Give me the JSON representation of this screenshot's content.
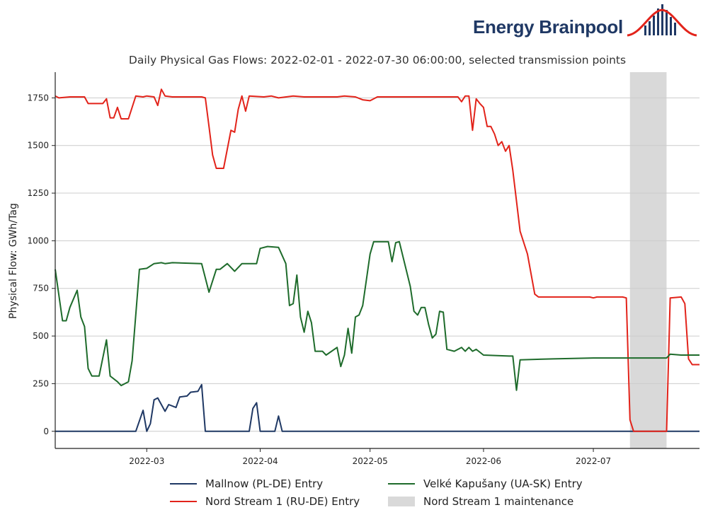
{
  "brand": {
    "name": "Energy Brainpool",
    "logo_icon": "bell-curve-bars-icon",
    "color": "#1f3864",
    "accent": "#e2231a"
  },
  "chart_data": {
    "type": "line",
    "title": "Daily Physical Gas Flows: 2022-02-01 - 2022-07-30 06:00:00, selected transmission points",
    "xlabel": "",
    "ylabel": "Physical Flow: GWh/Tag",
    "xlim": [
      "2022-02-04",
      "2022-07-30"
    ],
    "ylim": [
      -90,
      1885
    ],
    "yticks": [
      0,
      250,
      500,
      750,
      1000,
      1250,
      1500,
      1750
    ],
    "xticks": [
      "2022-03",
      "2022-04",
      "2022-05",
      "2022-06",
      "2022-07"
    ],
    "xtick_dates": [
      "2022-03-01",
      "2022-04-01",
      "2022-05-01",
      "2022-06-01",
      "2022-07-01"
    ],
    "grid": "horizontal",
    "legend_position": "bottom",
    "shaded_regions": [
      {
        "name": "Nord Stream 1 maintenance",
        "start": "2022-07-11",
        "end": "2022-07-21",
        "color": "#d9d9d9"
      }
    ],
    "series": [
      {
        "name": "Mallnow (PL-DE) Entry",
        "color": "#1f3864",
        "points": [
          [
            "2022-02-04",
            0
          ],
          [
            "2022-02-26",
            0
          ],
          [
            "2022-02-28",
            110
          ],
          [
            "2022-03-01",
            0
          ],
          [
            "2022-03-02",
            40
          ],
          [
            "2022-03-03",
            165
          ],
          [
            "2022-03-04",
            175
          ],
          [
            "2022-03-06",
            105
          ],
          [
            "2022-03-07",
            140
          ],
          [
            "2022-03-09",
            125
          ],
          [
            "2022-03-10",
            180
          ],
          [
            "2022-03-12",
            185
          ],
          [
            "2022-03-13",
            205
          ],
          [
            "2022-03-15",
            210
          ],
          [
            "2022-03-16",
            245
          ],
          [
            "2022-03-17",
            0
          ],
          [
            "2022-03-29",
            0
          ],
          [
            "2022-03-30",
            120
          ],
          [
            "2022-03-31",
            150
          ],
          [
            "2022-04-01",
            0
          ],
          [
            "2022-04-05",
            0
          ],
          [
            "2022-04-06",
            80
          ],
          [
            "2022-04-07",
            0
          ],
          [
            "2022-07-30",
            0
          ]
        ]
      },
      {
        "name": "Nord Stream 1 (RU-DE) Entry",
        "color": "#e2231a",
        "points": [
          [
            "2022-02-04",
            1760
          ],
          [
            "2022-02-05",
            1750
          ],
          [
            "2022-02-08",
            1755
          ],
          [
            "2022-02-12",
            1755
          ],
          [
            "2022-02-13",
            1720
          ],
          [
            "2022-02-17",
            1720
          ],
          [
            "2022-02-18",
            1745
          ],
          [
            "2022-02-19",
            1645
          ],
          [
            "2022-02-20",
            1645
          ],
          [
            "2022-02-21",
            1700
          ],
          [
            "2022-02-22",
            1640
          ],
          [
            "2022-02-24",
            1640
          ],
          [
            "2022-02-26",
            1760
          ],
          [
            "2022-02-28",
            1755
          ],
          [
            "2022-03-01",
            1760
          ],
          [
            "2022-03-03",
            1755
          ],
          [
            "2022-03-04",
            1710
          ],
          [
            "2022-03-05",
            1795
          ],
          [
            "2022-03-06",
            1760
          ],
          [
            "2022-03-08",
            1755
          ],
          [
            "2022-03-16",
            1755
          ],
          [
            "2022-03-17",
            1750
          ],
          [
            "2022-03-18",
            1600
          ],
          [
            "2022-03-19",
            1450
          ],
          [
            "2022-03-20",
            1380
          ],
          [
            "2022-03-22",
            1380
          ],
          [
            "2022-03-24",
            1580
          ],
          [
            "2022-03-25",
            1570
          ],
          [
            "2022-03-26",
            1690
          ],
          [
            "2022-03-27",
            1760
          ],
          [
            "2022-03-28",
            1680
          ],
          [
            "2022-03-29",
            1760
          ],
          [
            "2022-04-02",
            1755
          ],
          [
            "2022-04-04",
            1760
          ],
          [
            "2022-04-06",
            1750
          ],
          [
            "2022-04-10",
            1760
          ],
          [
            "2022-04-13",
            1755
          ],
          [
            "2022-04-22",
            1755
          ],
          [
            "2022-04-24",
            1760
          ],
          [
            "2022-04-27",
            1755
          ],
          [
            "2022-04-29",
            1740
          ],
          [
            "2022-05-01",
            1735
          ],
          [
            "2022-05-03",
            1755
          ],
          [
            "2022-05-10",
            1755
          ],
          [
            "2022-05-20",
            1755
          ],
          [
            "2022-05-25",
            1755
          ],
          [
            "2022-05-26",
            1730
          ],
          [
            "2022-05-27",
            1760
          ],
          [
            "2022-05-28",
            1760
          ],
          [
            "2022-05-29",
            1580
          ],
          [
            "2022-05-30",
            1745
          ],
          [
            "2022-05-31",
            1720
          ],
          [
            "2022-06-01",
            1700
          ],
          [
            "2022-06-02",
            1600
          ],
          [
            "2022-06-03",
            1600
          ],
          [
            "2022-06-04",
            1560
          ],
          [
            "2022-06-05",
            1500
          ],
          [
            "2022-06-06",
            1520
          ],
          [
            "2022-06-07",
            1470
          ],
          [
            "2022-06-08",
            1500
          ],
          [
            "2022-06-09",
            1370
          ],
          [
            "2022-06-11",
            1050
          ],
          [
            "2022-06-13",
            930
          ],
          [
            "2022-06-15",
            720
          ],
          [
            "2022-06-16",
            705
          ],
          [
            "2022-06-25",
            705
          ],
          [
            "2022-06-30",
            705
          ],
          [
            "2022-07-01",
            700
          ],
          [
            "2022-07-02",
            705
          ],
          [
            "2022-07-09",
            705
          ],
          [
            "2022-07-10",
            700
          ],
          [
            "2022-07-11",
            60
          ],
          [
            "2022-07-12",
            0
          ],
          [
            "2022-07-21",
            0
          ],
          [
            "2022-07-22",
            700
          ],
          [
            "2022-07-25",
            705
          ],
          [
            "2022-07-26",
            670
          ],
          [
            "2022-07-27",
            380
          ],
          [
            "2022-07-28",
            350
          ],
          [
            "2022-07-30",
            350
          ]
        ]
      },
      {
        "name": "Velké Kapušany (UA-SK) Entry",
        "color": "#1e6b2b",
        "points": [
          [
            "2022-02-04",
            850
          ],
          [
            "2022-02-06",
            580
          ],
          [
            "2022-02-07",
            580
          ],
          [
            "2022-02-08",
            650
          ],
          [
            "2022-02-10",
            740
          ],
          [
            "2022-02-11",
            600
          ],
          [
            "2022-02-12",
            550
          ],
          [
            "2022-02-13",
            330
          ],
          [
            "2022-02-14",
            290
          ],
          [
            "2022-02-16",
            290
          ],
          [
            "2022-02-18",
            480
          ],
          [
            "2022-02-19",
            290
          ],
          [
            "2022-02-21",
            260
          ],
          [
            "2022-02-22",
            240
          ],
          [
            "2022-02-24",
            260
          ],
          [
            "2022-02-25",
            370
          ],
          [
            "2022-02-27",
            850
          ],
          [
            "2022-03-01",
            855
          ],
          [
            "2022-03-03",
            880
          ],
          [
            "2022-03-05",
            885
          ],
          [
            "2022-03-06",
            880
          ],
          [
            "2022-03-08",
            885
          ],
          [
            "2022-03-16",
            880
          ],
          [
            "2022-03-18",
            730
          ],
          [
            "2022-03-20",
            850
          ],
          [
            "2022-03-21",
            850
          ],
          [
            "2022-03-23",
            880
          ],
          [
            "2022-03-25",
            840
          ],
          [
            "2022-03-27",
            880
          ],
          [
            "2022-03-31",
            880
          ],
          [
            "2022-04-01",
            960
          ],
          [
            "2022-04-03",
            970
          ],
          [
            "2022-04-06",
            965
          ],
          [
            "2022-04-08",
            880
          ],
          [
            "2022-04-09",
            660
          ],
          [
            "2022-04-10",
            670
          ],
          [
            "2022-04-11",
            820
          ],
          [
            "2022-04-12",
            600
          ],
          [
            "2022-04-13",
            520
          ],
          [
            "2022-04-14",
            630
          ],
          [
            "2022-04-15",
            570
          ],
          [
            "2022-04-16",
            420
          ],
          [
            "2022-04-18",
            420
          ],
          [
            "2022-04-19",
            400
          ],
          [
            "2022-04-22",
            440
          ],
          [
            "2022-04-23",
            340
          ],
          [
            "2022-04-24",
            400
          ],
          [
            "2022-04-25",
            540
          ],
          [
            "2022-04-26",
            410
          ],
          [
            "2022-04-27",
            600
          ],
          [
            "2022-04-28",
            610
          ],
          [
            "2022-04-29",
            660
          ],
          [
            "2022-05-01",
            930
          ],
          [
            "2022-05-02",
            995
          ],
          [
            "2022-05-06",
            995
          ],
          [
            "2022-05-07",
            890
          ],
          [
            "2022-05-08",
            990
          ],
          [
            "2022-05-09",
            995
          ],
          [
            "2022-05-12",
            760
          ],
          [
            "2022-05-13",
            630
          ],
          [
            "2022-05-14",
            610
          ],
          [
            "2022-05-15",
            650
          ],
          [
            "2022-05-16",
            650
          ],
          [
            "2022-05-17",
            560
          ],
          [
            "2022-05-18",
            490
          ],
          [
            "2022-05-19",
            510
          ],
          [
            "2022-05-20",
            630
          ],
          [
            "2022-05-21",
            625
          ],
          [
            "2022-05-22",
            430
          ],
          [
            "2022-05-24",
            420
          ],
          [
            "2022-05-26",
            440
          ],
          [
            "2022-05-27",
            420
          ],
          [
            "2022-05-28",
            440
          ],
          [
            "2022-05-29",
            420
          ],
          [
            "2022-05-30",
            430
          ],
          [
            "2022-06-01",
            400
          ],
          [
            "2022-06-08",
            395
          ],
          [
            "2022-06-09",
            395
          ],
          [
            "2022-06-10",
            215
          ],
          [
            "2022-06-11",
            375
          ],
          [
            "2022-06-20",
            380
          ],
          [
            "2022-07-01",
            385
          ],
          [
            "2022-07-15",
            385
          ],
          [
            "2022-07-21",
            385
          ],
          [
            "2022-07-22",
            405
          ],
          [
            "2022-07-25",
            400
          ],
          [
            "2022-07-30",
            400
          ]
        ]
      }
    ]
  },
  "legend": {
    "items": [
      {
        "label": "Mallnow (PL-DE) Entry",
        "kind": "line",
        "color": "#1f3864"
      },
      {
        "label": "Velké Kapušany (UA-SK) Entry",
        "kind": "line",
        "color": "#1e6b2b"
      },
      {
        "label": "Nord Stream 1 (RU-DE) Entry",
        "kind": "line",
        "color": "#e2231a"
      },
      {
        "label": "Nord Stream 1 maintenance",
        "kind": "box",
        "color": "#d9d9d9"
      }
    ]
  }
}
